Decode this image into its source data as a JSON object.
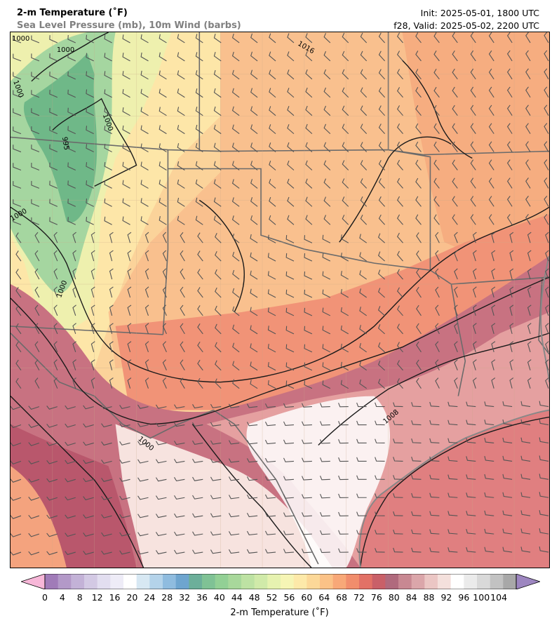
{
  "title": {
    "main": "2-m Temperature (˚F)",
    "sub": "Sea Level Pressure (mb), 10m Wind (barbs)",
    "init": "Init: 2025-05-01, 1800 UTC",
    "valid": "f28, Valid: 2025-05-02, 2200 UTC"
  },
  "isobar_labels": [
    "1000",
    "1000",
    "1000",
    "1000",
    "1000",
    "1000",
    "1016",
    "1008",
    "1000",
    "995"
  ],
  "colorbar": {
    "label": "2-m Temperature (˚F)",
    "min": 0,
    "max": 108,
    "step": 4,
    "ticks": [
      "0",
      "4",
      "8",
      "12",
      "16",
      "20",
      "24",
      "28",
      "32",
      "36",
      "40",
      "44",
      "48",
      "52",
      "56",
      "60",
      "64",
      "68",
      "72",
      "76",
      "80",
      "84",
      "88",
      "92",
      "96",
      "100",
      "104"
    ],
    "colors": [
      "#a07bb8",
      "#b399c8",
      "#c3b2d7",
      "#d3c9e4",
      "#e2def0",
      "#eeecf7",
      "#ffffff",
      "#d7e8f3",
      "#b4d3ea",
      "#8fbcdf",
      "#6ea5cf",
      "#6caf9a",
      "#7fc295",
      "#92d095",
      "#a8d89b",
      "#bde2a3",
      "#d0eaa9",
      "#e6f2b0",
      "#f6f5b5",
      "#fde9a9",
      "#fcd898",
      "#fbc287",
      "#f8a878",
      "#f18d6c",
      "#e27166",
      "#c96068",
      "#b06a7d",
      "#c88892",
      "#dba6aa",
      "#ebc6c4",
      "#f4e0dc",
      "#ffffff",
      "#ebebeb",
      "#d9d9d9",
      "#c2c2c2",
      "#a8a8a8"
    ],
    "extend_low_color": "#f7b7d8",
    "extend_high_color": "#9d86c0"
  }
}
